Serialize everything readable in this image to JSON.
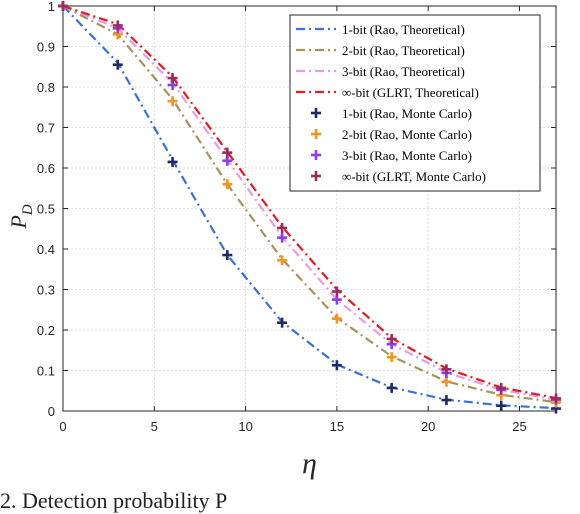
{
  "chart_data": {
    "type": "line",
    "xlabel": "η",
    "ylabel_main": "P",
    "ylabel_sub": "D",
    "xlim": [
      0,
      27
    ],
    "ylim": [
      0,
      1
    ],
    "xticks": [
      0,
      5,
      10,
      15,
      20,
      25
    ],
    "yticks": [
      0,
      0.1,
      0.2,
      0.3,
      0.4,
      0.5,
      0.6,
      0.7,
      0.8,
      0.9,
      1
    ],
    "grid": true,
    "legend_position": "top-right",
    "x": [
      0,
      3,
      6,
      9,
      12,
      15,
      18,
      21,
      24,
      27
    ],
    "series": [
      {
        "name": "1-bit (Rao, Theoretical)",
        "style": "dashdot",
        "color": "#3a6fd8",
        "values": [
          1.0,
          0.86,
          0.62,
          0.385,
          0.22,
          0.115,
          0.058,
          0.028,
          0.014,
          0.007
        ]
      },
      {
        "name": "2-bit (Rao, Theoretical)",
        "style": "dashdot",
        "color": "#a89261",
        "values": [
          1.0,
          0.93,
          0.77,
          0.56,
          0.375,
          0.23,
          0.135,
          0.073,
          0.04,
          0.022
        ]
      },
      {
        "name": "3-bit (Rao, Theoretical)",
        "style": "dashdot",
        "color": "#e79be6",
        "values": [
          1.0,
          0.945,
          0.81,
          0.62,
          0.43,
          0.275,
          0.165,
          0.095,
          0.052,
          0.028
        ]
      },
      {
        "name": "∞-bit (GLRT, Theoretical)",
        "style": "dashdot",
        "color": "#e8191d",
        "values": [
          1.0,
          0.955,
          0.825,
          0.64,
          0.455,
          0.3,
          0.18,
          0.105,
          0.058,
          0.032
        ]
      },
      {
        "name": "1-bit (Rao, Monte Carlo)",
        "style": "marker",
        "color": "#1f2a66",
        "values": [
          1.0,
          0.855,
          0.615,
          0.385,
          0.218,
          0.113,
          0.057,
          0.027,
          0.013,
          0.006
        ]
      },
      {
        "name": "2-bit (Rao, Monte Carlo)",
        "style": "marker",
        "color": "#f7941d",
        "values": [
          1.0,
          0.93,
          0.765,
          0.56,
          0.372,
          0.228,
          0.133,
          0.072,
          0.039,
          0.021
        ]
      },
      {
        "name": "3-bit (Rao, Monte Carlo)",
        "style": "marker",
        "color": "#8b3cf0",
        "values": [
          1.0,
          0.945,
          0.805,
          0.618,
          0.428,
          0.275,
          0.165,
          0.094,
          0.052,
          0.028
        ]
      },
      {
        "name": "∞-bit (GLRT, Monte Carlo)",
        "style": "marker",
        "color": "#9c2a5d",
        "values": [
          1.0,
          0.952,
          0.822,
          0.638,
          0.452,
          0.295,
          0.178,
          0.103,
          0.057,
          0.031
        ]
      }
    ]
  },
  "caption": "2. Detection probability P"
}
